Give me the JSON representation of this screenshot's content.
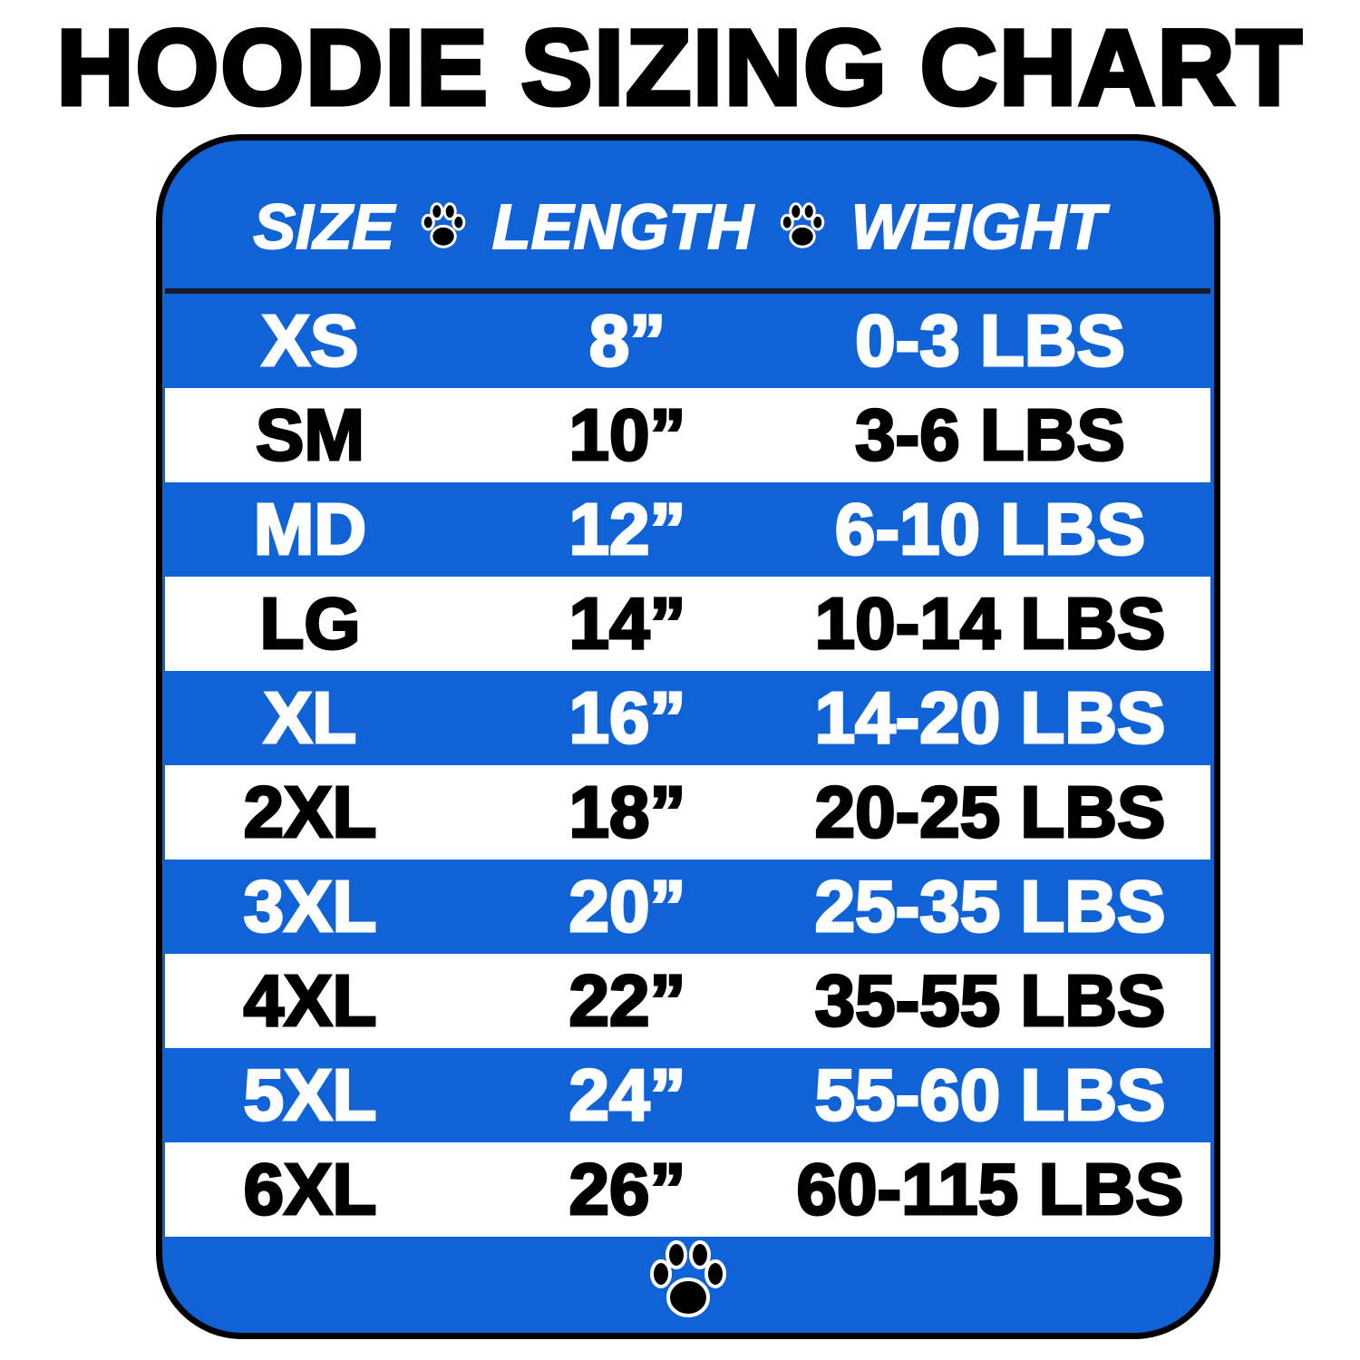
{
  "title": "HOODIE SIZING CHART",
  "colors": {
    "blue": "#1063d6",
    "black": "#000000",
    "white": "#ffffff"
  },
  "header": {
    "size": "SIZE",
    "length": "LENGTH",
    "weight": "WEIGHT",
    "separator_icon": "paw-icon"
  },
  "rows": [
    {
      "size": "XS",
      "length": "8”",
      "weight": "0-3 LBS"
    },
    {
      "size": "SM",
      "length": "10”",
      "weight": "3-6 LBS"
    },
    {
      "size": "MD",
      "length": "12”",
      "weight": "6-10 LBS"
    },
    {
      "size": "LG",
      "length": "14”",
      "weight": "10-14 LBS"
    },
    {
      "size": "XL",
      "length": "16”",
      "weight": "14-20 LBS"
    },
    {
      "size": "2XL",
      "length": "18”",
      "weight": "20-25 LBS"
    },
    {
      "size": "3XL",
      "length": "20”",
      "weight": "25-35 LBS"
    },
    {
      "size": "4XL",
      "length": "22”",
      "weight": "35-55 LBS"
    },
    {
      "size": "5XL",
      "length": "24”",
      "weight": "55-60 LBS"
    },
    {
      "size": "6XL",
      "length": "26”",
      "weight": "60-115 LBS"
    }
  ],
  "footer_icon": "paw-icon"
}
